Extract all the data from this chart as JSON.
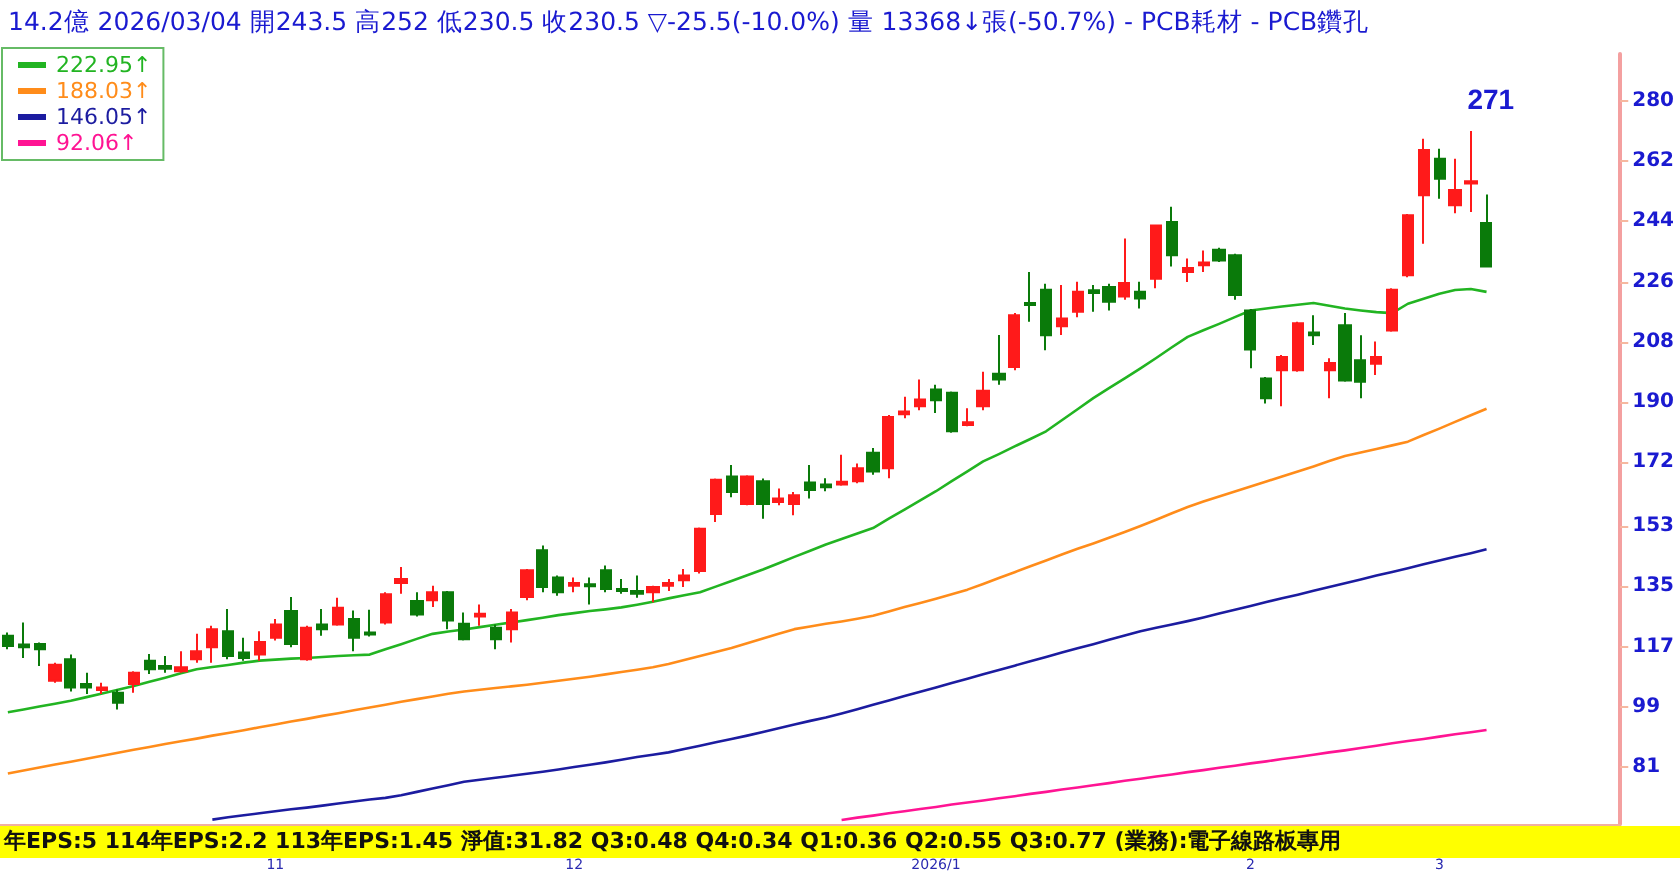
{
  "chart_data": {
    "type": "candlestick",
    "title": "14.2億  2026/03/04  開243.5 高252 低230.5 收230.5 ▽-25.5(-10.0%)  量 13368↓張(-50.7%) - PCB耗材 - PCB鑽孔",
    "categories": [
      null,
      null,
      null,
      null,
      null,
      null,
      null,
      null,
      null,
      null,
      null,
      null,
      null,
      null,
      null,
      null,
      null,
      "11",
      null,
      null,
      null,
      null,
      null,
      null,
      null,
      null,
      null,
      null,
      null,
      null,
      null,
      null,
      null,
      null,
      null,
      null,
      "12",
      null,
      null,
      null,
      null,
      null,
      null,
      null,
      null,
      null,
      null,
      null,
      null,
      null,
      null,
      null,
      null,
      null,
      null,
      null,
      null,
      null,
      null,
      "2026/1",
      null,
      null,
      null,
      null,
      null,
      null,
      null,
      null,
      null,
      null,
      null,
      null,
      null,
      null,
      null,
      null,
      null,
      null,
      null,
      "2",
      null,
      null,
      null,
      null,
      null,
      null,
      null,
      null,
      null,
      null,
      null,
      "3",
      null,
      null,
      null
    ],
    "ohlc": [
      [
        120.2,
        121.2,
        116.2,
        117.2
      ],
      [
        117.6,
        124.2,
        113.6,
        116.8
      ],
      [
        117.8,
        118.2,
        111.2,
        116.2
      ],
      [
        106.8,
        112.2,
        106.2,
        111.6
      ],
      [
        113.2,
        114.6,
        103.6,
        104.8
      ],
      [
        105.8,
        109.2,
        102.8,
        104.8
      ],
      [
        104.0,
        106.2,
        102.8,
        104.8
      ],
      [
        103.2,
        104.2,
        98.2,
        100.2
      ],
      [
        105.8,
        109.6,
        103.2,
        109.2
      ],
      [
        112.8,
        114.8,
        108.8,
        110.2
      ],
      [
        111.2,
        114.2,
        109.2,
        110.4
      ],
      [
        109.6,
        115.6,
        109.2,
        110.8
      ],
      [
        113.2,
        120.8,
        112.2,
        115.6
      ],
      [
        116.8,
        123.2,
        112.2,
        122.2
      ],
      [
        121.6,
        128.2,
        113.2,
        114.2
      ],
      [
        115.2,
        119.6,
        112.8,
        113.6
      ],
      [
        114.6,
        121.6,
        112.8,
        118.4
      ],
      [
        119.6,
        125.2,
        118.8,
        123.6
      ],
      [
        127.6,
        131.8,
        116.8,
        117.8
      ],
      [
        113.2,
        123.2,
        112.8,
        122.6
      ],
      [
        123.6,
        128.2,
        120.2,
        122.2
      ],
      [
        123.6,
        131.6,
        123.2,
        128.6
      ],
      [
        125.2,
        127.8,
        115.6,
        119.6
      ],
      [
        121.2,
        128.0,
        120.0,
        120.6
      ],
      [
        124.2,
        133.2,
        123.6,
        132.6
      ],
      [
        136.0,
        140.8,
        132.8,
        137.2
      ],
      [
        130.6,
        133.2,
        126.0,
        126.6
      ],
      [
        130.8,
        135.2,
        128.8,
        133.2
      ],
      [
        133.2,
        133.6,
        122.2,
        124.8
      ],
      [
        123.8,
        127.2,
        118.8,
        119.2
      ],
      [
        126.0,
        129.6,
        123.2,
        126.8
      ],
      [
        122.6,
        123.6,
        116.2,
        119.2
      ],
      [
        122.2,
        128.2,
        118.2,
        127.2
      ],
      [
        131.8,
        140.2,
        130.8,
        139.8
      ],
      [
        145.8,
        147.2,
        133.2,
        134.8
      ],
      [
        137.6,
        138.2,
        132.2,
        133.2
      ],
      [
        135.2,
        137.6,
        133.2,
        136.0
      ],
      [
        135.6,
        137.6,
        129.6,
        135.0
      ],
      [
        139.8,
        141.2,
        133.2,
        134.2
      ],
      [
        134.2,
        137.2,
        132.8,
        133.6
      ],
      [
        133.6,
        138.2,
        131.6,
        132.8
      ],
      [
        133.2,
        135.2,
        130.2,
        134.8
      ],
      [
        135.2,
        137.2,
        133.6,
        136.0
      ],
      [
        136.8,
        140.2,
        134.8,
        138.2
      ],
      [
        139.6,
        152.6,
        138.8,
        152.2
      ],
      [
        156.6,
        167.2,
        154.2,
        166.8
      ],
      [
        167.8,
        171.2,
        161.6,
        163.2
      ],
      [
        159.6,
        168.2,
        159.2,
        167.8
      ],
      [
        166.4,
        167.2,
        155.2,
        159.6
      ],
      [
        160.2,
        164.2,
        159.2,
        161.2
      ],
      [
        159.6,
        163.2,
        156.2,
        162.2
      ],
      [
        166.0,
        171.2,
        161.2,
        163.8
      ],
      [
        165.4,
        167.3,
        163.4,
        164.6
      ],
      [
        165.4,
        174.3,
        165.0,
        166.2
      ],
      [
        166.4,
        171.7,
        165.8,
        170.3
      ],
      [
        174.9,
        176.3,
        168.3,
        169.3
      ],
      [
        170.3,
        186.2,
        167.3,
        185.6
      ],
      [
        186.4,
        191.6,
        185.2,
        187.2
      ],
      [
        188.8,
        196.8,
        187.6,
        190.8
      ],
      [
        193.8,
        195.2,
        186.8,
        190.6
      ],
      [
        192.8,
        193.2,
        180.9,
        181.3
      ],
      [
        183.2,
        188.2,
        182.8,
        184.0
      ],
      [
        188.8,
        199.1,
        187.6,
        193.4
      ],
      [
        198.5,
        210.1,
        195.2,
        196.8
      ],
      [
        200.5,
        216.6,
        199.5,
        216.0
      ],
      [
        219.6,
        228.9,
        214.0,
        219.0
      ],
      [
        223.6,
        225.4,
        205.5,
        210.0
      ],
      [
        212.7,
        225.0,
        210.1,
        215.0
      ],
      [
        217.0,
        226.0,
        215.4,
        223.0
      ],
      [
        223.4,
        225.0,
        217.0,
        222.6
      ],
      [
        224.4,
        225.4,
        217.4,
        220.0
      ],
      [
        221.6,
        238.9,
        220.6,
        225.6
      ],
      [
        223.0,
        226.0,
        218.0,
        221.0
      ],
      [
        226.9,
        243.0,
        224.0,
        242.8
      ],
      [
        243.8,
        248.4,
        230.5,
        233.9
      ],
      [
        228.9,
        232.9,
        225.9,
        230.1
      ],
      [
        230.9,
        235.3,
        228.9,
        231.7
      ],
      [
        235.5,
        236.1,
        231.9,
        232.3
      ],
      [
        233.9,
        234.3,
        220.6,
        222.0
      ],
      [
        217.4,
        217.8,
        200.1,
        205.7
      ],
      [
        197.1,
        197.5,
        189.6,
        191.2
      ],
      [
        199.5,
        204.1,
        188.8,
        203.5
      ],
      [
        199.5,
        214.0,
        199.1,
        213.6
      ],
      [
        210.8,
        216.0,
        207.1,
        210.0
      ],
      [
        199.5,
        203.1,
        191.2,
        201.7
      ],
      [
        213.0,
        216.6,
        196.1,
        196.5
      ],
      [
        202.5,
        210.0,
        191.2,
        196.1
      ],
      [
        201.5,
        208.1,
        198.1,
        203.5
      ],
      [
        211.4,
        224.0,
        211.0,
        223.6
      ],
      [
        227.9,
        246.2,
        227.3,
        245.8
      ],
      [
        251.8,
        268.7,
        237.3,
        265.3
      ],
      [
        262.7,
        265.7,
        250.8,
        256.7
      ],
      [
        248.8,
        262.7,
        246.4,
        253.4
      ],
      [
        255.3,
        271,
        246.8,
        256.0
      ],
      [
        243.5,
        252,
        230.5,
        230.5
      ]
    ],
    "series": [
      {
        "type": "line",
        "name": "222.95↑",
        "color": "#22b422",
        "values": [
          97.4,
          98.2,
          99.1,
          99.9,
          100.8,
          101.9,
          103.0,
          104.1,
          105.2,
          106.5,
          107.7,
          109.0,
          110.2,
          110.9,
          111.5,
          112.2,
          112.8,
          113.1,
          113.4,
          113.6,
          113.9,
          114.2,
          114.4,
          114.6,
          116.2,
          117.7,
          119.3,
          120.8,
          121.5,
          122.1,
          122.8,
          123.5,
          124.2,
          124.9,
          125.6,
          126.4,
          127.0,
          127.6,
          128.1,
          128.7,
          129.5,
          130.4,
          131.4,
          132.3,
          133.2,
          134.9,
          136.6,
          138.3,
          140.0,
          141.9,
          143.8,
          145.6,
          147.5,
          149.1,
          150.8,
          152.4,
          155.2,
          157.9,
          160.7,
          163.4,
          166.4,
          169.3,
          172.3,
          174.5,
          176.8,
          179.0,
          181.3,
          184.6,
          187.9,
          191.2,
          194.2,
          197.1,
          200.1,
          203.2,
          206.4,
          209.5,
          211.5,
          213.4,
          215.4,
          217.4,
          218.0,
          218.6,
          219.1,
          219.6,
          218.8,
          218.0,
          217.4,
          216.9,
          216.6,
          219.4,
          220.9,
          222.4,
          223.5,
          223.8,
          222.95
        ]
      },
      {
        "type": "line",
        "name": "188.03↑",
        "color": "#ff8c1a",
        "values": [
          79.1,
          80.0,
          80.9,
          81.8,
          82.6,
          83.5,
          84.4,
          85.3,
          86.2,
          87.0,
          87.9,
          88.7,
          89.5,
          90.4,
          91.2,
          92.0,
          92.9,
          93.7,
          94.6,
          95.4,
          96.3,
          97.1,
          98.0,
          98.8,
          99.6,
          100.5,
          101.3,
          102.1,
          102.9,
          103.6,
          104.1,
          104.6,
          105.1,
          105.6,
          106.2,
          106.8,
          107.4,
          108.0,
          108.7,
          109.4,
          110.1,
          110.8,
          111.8,
          113.0,
          114.2,
          115.4,
          116.6,
          118.0,
          119.4,
          120.8,
          122.2,
          123.0,
          123.8,
          124.5,
          125.3,
          126.2,
          127.5,
          128.8,
          130.0,
          131.3,
          132.6,
          134.0,
          135.7,
          137.5,
          139.2,
          141.0,
          142.7,
          144.5,
          146.2,
          147.8,
          149.5,
          151.2,
          153.0,
          154.9,
          156.8,
          158.7,
          160.3,
          161.8,
          163.3,
          164.8,
          166.3,
          167.8,
          169.3,
          170.8,
          172.4,
          173.9,
          175.0,
          176.0,
          177.1,
          178.2,
          180.2,
          182.1,
          184.1,
          186.1,
          188.03
        ]
      },
      {
        "type": "line",
        "name": "146.05↑",
        "color": "#1c1ca0",
        "values": [
          null,
          null,
          null,
          null,
          null,
          null,
          null,
          null,
          null,
          null,
          null,
          null,
          null,
          65.3,
          66.0,
          66.6,
          67.2,
          67.8,
          68.4,
          68.9,
          69.5,
          70.1,
          70.7,
          71.3,
          71.8,
          72.6,
          73.6,
          74.6,
          75.6,
          76.6,
          77.2,
          77.8,
          78.4,
          79.0,
          79.6,
          80.3,
          81.0,
          81.7,
          82.4,
          83.2,
          84.0,
          84.7,
          85.4,
          86.4,
          87.4,
          88.4,
          89.4,
          90.4,
          91.5,
          92.6,
          93.7,
          94.8,
          95.8,
          97.0,
          98.3,
          99.6,
          100.9,
          102.2,
          103.5,
          104.8,
          106.1,
          107.4,
          108.7,
          110.0,
          111.3,
          112.6,
          113.9,
          115.2,
          116.5,
          117.7,
          119.0,
          120.3,
          121.6,
          122.6,
          123.6,
          124.6,
          125.7,
          126.9,
          128.0,
          129.1,
          130.3,
          131.4,
          132.5,
          133.7,
          134.8,
          135.9,
          137.0,
          138.2,
          139.3,
          140.4,
          141.6,
          142.7,
          143.8,
          144.9,
          146.05
        ]
      },
      {
        "type": "line",
        "name": "92.06↑",
        "color": "#ff1493",
        "values": [
          null,
          null,
          null,
          null,
          null,
          null,
          null,
          null,
          null,
          null,
          null,
          null,
          null,
          null,
          null,
          null,
          null,
          null,
          null,
          null,
          null,
          null,
          null,
          null,
          null,
          null,
          null,
          null,
          null,
          null,
          null,
          null,
          null,
          null,
          null,
          null,
          null,
          null,
          null,
          null,
          null,
          null,
          null,
          null,
          null,
          null,
          null,
          null,
          null,
          null,
          null,
          null,
          null,
          65.2,
          65.9,
          66.5,
          67.2,
          67.8,
          68.5,
          69.1,
          69.8,
          70.4,
          71.0,
          71.7,
          72.3,
          73.0,
          73.6,
          74.3,
          74.9,
          75.6,
          76.2,
          76.9,
          77.5,
          78.2,
          78.8,
          79.5,
          80.1,
          80.8,
          81.4,
          82.1,
          82.7,
          83.4,
          84.0,
          84.7,
          85.4,
          86.0,
          86.7,
          87.4,
          88.1,
          88.8,
          89.4,
          90.1,
          90.8,
          91.4,
          92.06
        ]
      }
    ],
    "ylim": [
      64,
      294
    ],
    "yticks": [
      81,
      99,
      117,
      135,
      153,
      172,
      190,
      208,
      226,
      244,
      262,
      280
    ],
    "grid": false,
    "legend": "top left",
    "marker": "none",
    "annotations": [
      "271",
      "年EPS:5  114年EPS:2.2  113年EPS:1.45  淨值:31.82  Q3:0.48  Q4:0.34  Q1:0.36  Q2:0.55  Q3:0.77  (業務):電子線路板專用"
    ]
  }
}
